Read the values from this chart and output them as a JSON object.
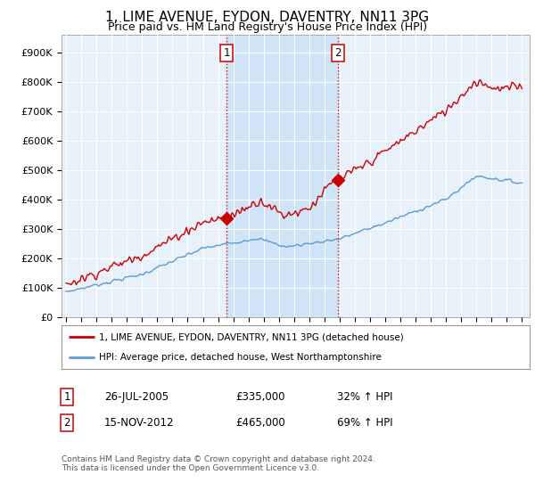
{
  "title": "1, LIME AVENUE, EYDON, DAVENTRY, NN11 3PG",
  "subtitle": "Price paid vs. HM Land Registry's House Price Index (HPI)",
  "title_fontsize": 11,
  "subtitle_fontsize": 9,
  "ylabel_ticks": [
    "£0",
    "£100K",
    "£200K",
    "£300K",
    "£400K",
    "£500K",
    "£600K",
    "£700K",
    "£800K",
    "£900K"
  ],
  "ytick_values": [
    0,
    100000,
    200000,
    300000,
    400000,
    500000,
    600000,
    700000,
    800000,
    900000
  ],
  "ylim": [
    0,
    960000
  ],
  "xlim_start": 1994.7,
  "xlim_end": 2025.5,
  "background_color": "#ffffff",
  "plot_bg_color": "#e8f0fa",
  "grid_color": "#ffffff",
  "shade_color": "#d0e4f7",
  "sale1_x": 2005.55,
  "sale1_y": 335000,
  "sale1_label": "1",
  "sale2_x": 2012.88,
  "sale2_y": 465000,
  "sale2_label": "2",
  "sale_marker_color": "#cc0000",
  "hpi_line_color": "#5b9bd5",
  "price_line_color": "#cc0000",
  "legend_items": [
    {
      "label": "1, LIME AVENUE, EYDON, DAVENTRY, NN11 3PG (detached house)",
      "color": "#cc0000"
    },
    {
      "label": "HPI: Average price, detached house, West Northamptonshire",
      "color": "#5b9bd5"
    }
  ],
  "table_rows": [
    {
      "num": "1",
      "date": "26-JUL-2005",
      "price": "£335,000",
      "hpi": "32% ↑ HPI"
    },
    {
      "num": "2",
      "date": "15-NOV-2012",
      "price": "£465,000",
      "hpi": "69% ↑ HPI"
    }
  ],
  "footnote": "Contains HM Land Registry data © Crown copyright and database right 2024.\nThis data is licensed under the Open Government Licence v3.0.",
  "xtick_years": [
    1995,
    1996,
    1997,
    1998,
    1999,
    2000,
    2001,
    2002,
    2003,
    2004,
    2005,
    2006,
    2007,
    2008,
    2009,
    2010,
    2011,
    2012,
    2013,
    2014,
    2015,
    2016,
    2017,
    2018,
    2019,
    2020,
    2021,
    2022,
    2023,
    2024,
    2025
  ]
}
